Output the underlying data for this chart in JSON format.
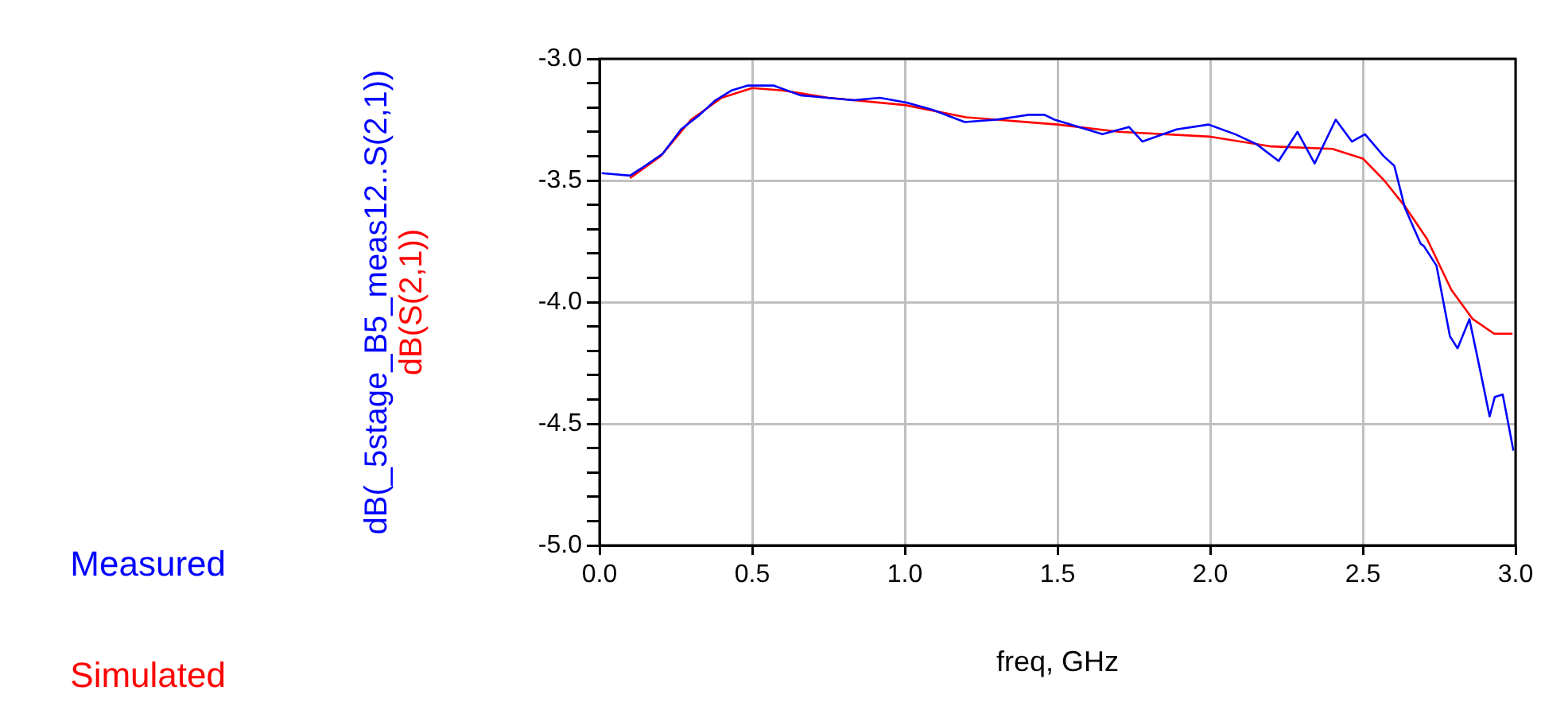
{
  "chart_data": {
    "type": "line",
    "xlabel": "freq, GHz",
    "ylabel": [
      "dB(_5stage_B5_meas12..S(2,1))",
      "dB(S(2,1))"
    ],
    "xlim": [
      0,
      3
    ],
    "xticks": [
      {
        "value": 0,
        "label": "0.0"
      },
      {
        "value": 0.5,
        "label": "0.5"
      },
      {
        "value": 1,
        "label": "1.0"
      },
      {
        "value": 1.5,
        "label": "1.5"
      },
      {
        "value": 2,
        "label": "2.0"
      },
      {
        "value": 2.5,
        "label": "2.5"
      },
      {
        "value": 3,
        "label": "3.0"
      }
    ],
    "ylim": [
      -5,
      -3
    ],
    "yticks": [
      {
        "value": -5,
        "label": "-5.0"
      },
      {
        "value": -4.9,
        "label": null
      },
      {
        "value": -4.8,
        "label": null
      },
      {
        "value": -4.7,
        "label": null
      },
      {
        "value": -4.6,
        "label": null
      },
      {
        "value": -4.5,
        "label": "-4.5"
      },
      {
        "value": -4.4,
        "label": null
      },
      {
        "value": -4.3,
        "label": null
      },
      {
        "value": -4.2,
        "label": null
      },
      {
        "value": -4.1,
        "label": null
      },
      {
        "value": -4,
        "label": "-4.0"
      },
      {
        "value": -3.9,
        "label": null
      },
      {
        "value": -3.8,
        "label": null
      },
      {
        "value": -3.7,
        "label": null
      },
      {
        "value": -3.6,
        "label": null
      },
      {
        "value": -3.5,
        "label": "-3.5"
      },
      {
        "value": -3.4,
        "label": null
      },
      {
        "value": -3.3,
        "label": null
      },
      {
        "value": -3.2,
        "label": null
      },
      {
        "value": -3.1,
        "label": null
      },
      {
        "value": -3,
        "label": "-3.0"
      }
    ],
    "grid": true,
    "legend": "bottom left",
    "marker": "none",
    "line_style": "solid",
    "series": [
      {
        "name": "Measured",
        "color": "#0000ff",
        "x": [
          0.007,
          0.1,
          0.137,
          0.207,
          0.267,
          0.328,
          0.38,
          0.432,
          0.484,
          0.571,
          0.658,
          0.745,
          0.832,
          0.918,
          1.005,
          1.092,
          1.196,
          1.3,
          1.405,
          1.457,
          1.49,
          1.647,
          1.734,
          1.778,
          1.89,
          1.995,
          2.082,
          2.151,
          2.224,
          2.286,
          2.342,
          2.411,
          2.464,
          2.507,
          2.568,
          2.603,
          2.637,
          2.689,
          2.7,
          2.741,
          2.785,
          2.81,
          2.849,
          2.889,
          2.915,
          2.932,
          2.958,
          2.993
        ],
        "values": [
          -3.47,
          -3.48,
          -3.45,
          -3.39,
          -3.29,
          -3.23,
          -3.17,
          -3.13,
          -3.11,
          -3.11,
          -3.15,
          -3.16,
          -3.17,
          -3.16,
          -3.18,
          -3.21,
          -3.26,
          -3.25,
          -3.23,
          -3.23,
          -3.25,
          -3.31,
          -3.28,
          -3.34,
          -3.29,
          -3.27,
          -3.31,
          -3.35,
          -3.42,
          -3.3,
          -3.43,
          -3.25,
          -3.34,
          -3.31,
          -3.4,
          -3.44,
          -3.61,
          -3.76,
          -3.77,
          -3.85,
          -4.14,
          -4.19,
          -4.07,
          -4.31,
          -4.47,
          -4.39,
          -4.38,
          -4.61
        ]
      },
      {
        "name": "Simulated",
        "color": "#ff0000",
        "x": [
          0.1,
          0.2,
          0.3,
          0.4,
          0.5,
          0.6,
          0.75,
          1.0,
          1.2,
          1.5,
          1.7,
          2.0,
          2.2,
          2.4,
          2.5,
          2.57,
          2.64,
          2.71,
          2.79,
          2.86,
          2.93,
          2.99
        ],
        "values": [
          -3.49,
          -3.4,
          -3.25,
          -3.16,
          -3.12,
          -3.13,
          -3.16,
          -3.19,
          -3.24,
          -3.27,
          -3.3,
          -3.32,
          -3.36,
          -3.37,
          -3.41,
          -3.5,
          -3.61,
          -3.74,
          -3.95,
          -4.07,
          -4.13,
          -4.13
        ]
      }
    ]
  }
}
